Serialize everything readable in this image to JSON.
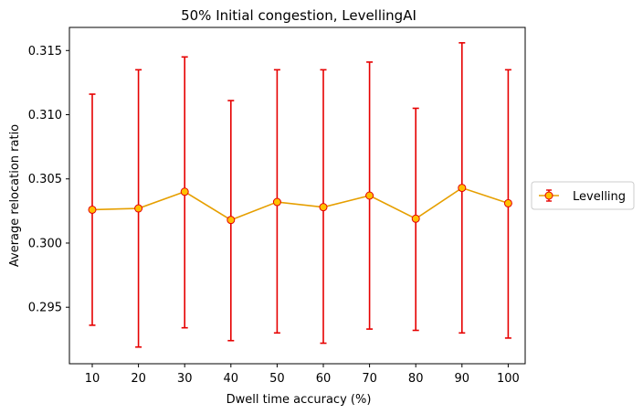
{
  "chart_data": {
    "type": "line",
    "title": "50% Initial congestion, LevellingAI",
    "xlabel": "Dwell time accuracy (%)",
    "ylabel": "Average relocation ratio",
    "categories": [
      "10",
      "20",
      "30",
      "40",
      "50",
      "60",
      "70",
      "80",
      "90",
      "100"
    ],
    "x": [
      10,
      20,
      30,
      40,
      50,
      60,
      70,
      80,
      90,
      100
    ],
    "yticks": [
      0.295,
      0.3,
      0.305,
      0.31,
      0.315
    ],
    "ytick_labels": [
      "0.295",
      "0.300",
      "0.305",
      "0.310",
      "0.315"
    ],
    "ylim": [
      0.2906,
      0.3168
    ],
    "grid": false,
    "legend_position": "outside-right",
    "series": [
      {
        "name": "Levelling",
        "values": [
          0.3026,
          0.3027,
          0.304,
          0.3018,
          0.3032,
          0.3028,
          0.3037,
          0.3019,
          0.3043,
          0.3031
        ],
        "error_low": [
          0.2936,
          0.2919,
          0.2934,
          0.2924,
          0.293,
          0.2922,
          0.2933,
          0.2932,
          0.293,
          0.2926
        ],
        "error_high": [
          0.3116,
          0.3135,
          0.3145,
          0.3111,
          0.3135,
          0.3135,
          0.3141,
          0.3105,
          0.3156,
          0.3135
        ],
        "line_color": "#e69f00",
        "marker_color": "#ffc000",
        "error_color": "#e60000"
      }
    ]
  }
}
